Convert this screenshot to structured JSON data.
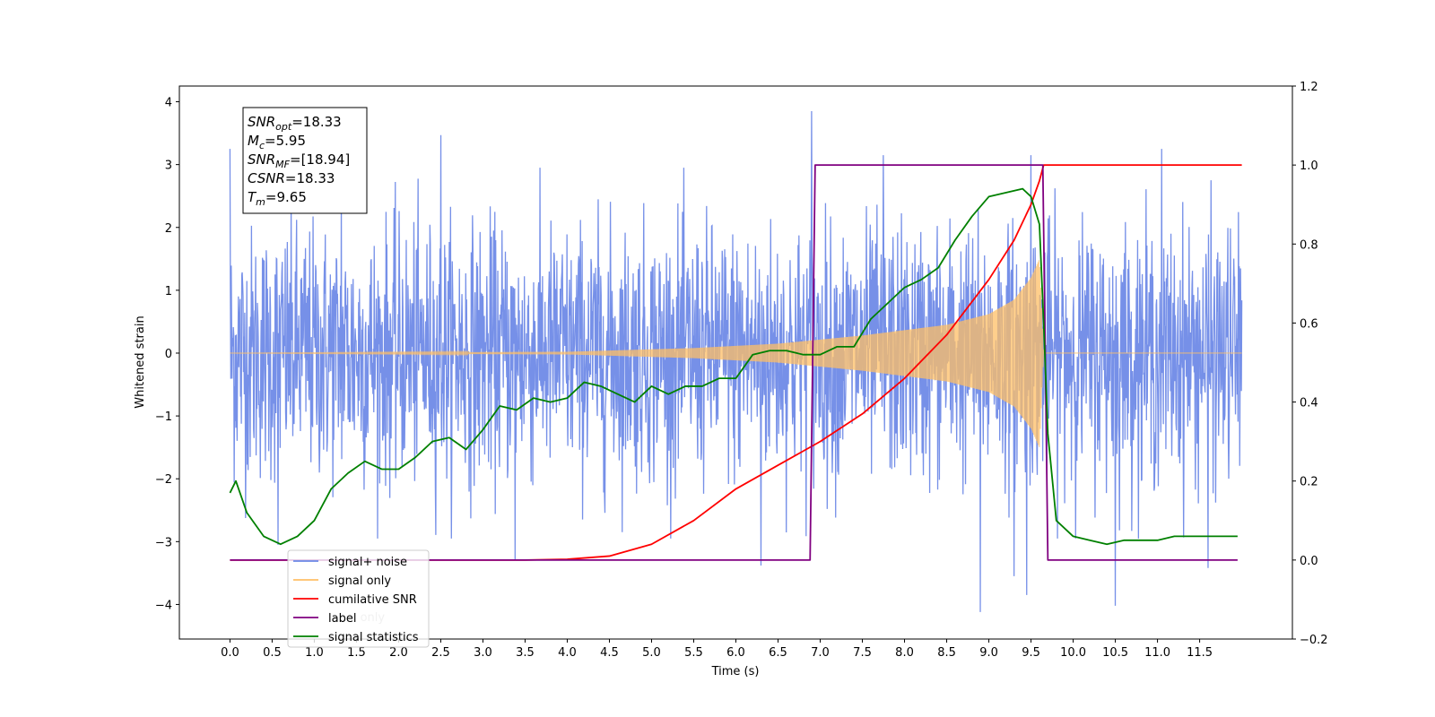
{
  "chart_data": {
    "type": "line",
    "xlabel": "Time (s)",
    "ylabel_left": "Whitened strain",
    "xlim": [
      -0.6,
      12.6
    ],
    "ylim_left": [
      -4.55,
      4.25
    ],
    "ylim_right": [
      -0.2,
      1.2
    ],
    "x_ticks": [
      0.0,
      0.5,
      1.0,
      1.5,
      2.0,
      2.5,
      3.0,
      3.5,
      4.0,
      4.5,
      5.0,
      5.5,
      6.0,
      6.5,
      7.0,
      7.5,
      8.0,
      8.5,
      9.0,
      9.5,
      10.0,
      10.5,
      11.0,
      11.5
    ],
    "x_tick_labels": [
      "0.0",
      "0.5",
      "1.0",
      "1.5",
      "2.0",
      "2.5",
      "3.0",
      "3.5",
      "4.0",
      "4.5",
      "5.0",
      "5.5",
      "6.0",
      "6.5",
      "7.0",
      "7.5",
      "8.0",
      "8.5",
      "9.0",
      "9.5",
      "10.0",
      "10.5",
      "11.0",
      "11.5"
    ],
    "y_ticks_left": [
      4,
      3,
      2,
      1,
      0,
      -1,
      -2,
      -3,
      -4
    ],
    "y_tick_labels_left": [
      "4",
      "3",
      "2",
      "1",
      "0",
      "−1",
      "−2",
      "−3",
      "−4"
    ],
    "y_ticks_right": [
      1.2,
      1.0,
      0.8,
      0.6,
      0.4,
      0.2,
      0.0,
      -0.2
    ],
    "y_tick_labels_right": [
      "1.2",
      "1.0",
      "0.8",
      "0.6",
      "0.4",
      "0.2",
      "0.0",
      "−0.2"
    ],
    "annotation": [
      {
        "sym": "SNR",
        "sub": "opt",
        "rest": "=18.33"
      },
      {
        "sym": "M",
        "sub": "c",
        "rest": "=5.95"
      },
      {
        "sym": "SNR",
        "sub": "MF",
        "rest": "=[18.94]"
      },
      {
        "sym": "CSNR",
        "sub": "",
        "rest": "=18.33"
      },
      {
        "sym": "T",
        "sub": "m",
        "rest": "=9.65"
      }
    ],
    "legend": [
      {
        "label": "signal+ noise",
        "color": "#6a87e6"
      },
      {
        "label": "signal only",
        "color": "#ffbf66"
      },
      {
        "label": "cumilative SNR",
        "color": "#ff0000"
      },
      {
        "label": "label",
        "color": "#800080"
      },
      {
        "label": "signal statistics",
        "color": "#008000"
      }
    ],
    "hidden_legend_label": "label only",
    "series": [
      {
        "name": "signal+ noise",
        "axis": "left",
        "color": "#6a87e6",
        "x_range": [
          0.0,
          12.0
        ],
        "noise_sigma": 1.0,
        "peaks": [
          [
            0.0,
            3.25
          ],
          [
            1.32,
            2.55
          ],
          [
            2.5,
            3.47
          ],
          [
            6.9,
            3.85
          ],
          [
            7.75,
            3.15
          ],
          [
            9.5,
            3.15
          ],
          [
            11.05,
            3.25
          ],
          [
            0.57,
            -3.05
          ],
          [
            3.38,
            -3.28
          ],
          [
            6.3,
            -3.38
          ],
          [
            8.9,
            -4.12
          ],
          [
            9.3,
            -3.55
          ],
          [
            9.45,
            -3.85
          ],
          [
            10.5,
            -4.02
          ],
          [
            11.6,
            -3.42
          ]
        ]
      },
      {
        "name": "signal only",
        "axis": "left",
        "color": "#ffbf66",
        "envelope": [
          [
            0.0,
            0.0
          ],
          [
            4.0,
            0.02
          ],
          [
            5.5,
            0.08
          ],
          [
            6.5,
            0.15
          ],
          [
            7.5,
            0.28
          ],
          [
            8.5,
            0.45
          ],
          [
            9.0,
            0.62
          ],
          [
            9.3,
            0.85
          ],
          [
            9.5,
            1.2
          ],
          [
            9.6,
            1.5
          ],
          [
            9.65,
            0.0
          ],
          [
            12.0,
            0.0
          ]
        ]
      },
      {
        "name": "cumilative SNR",
        "axis": "right",
        "color": "#ff0000",
        "x": [
          0.0,
          3.5,
          4.0,
          4.5,
          5.0,
          5.5,
          6.0,
          6.5,
          7.0,
          7.5,
          8.0,
          8.5,
          9.0,
          9.3,
          9.5,
          9.6,
          9.65,
          12.0
        ],
        "y": [
          0.0,
          0.0,
          0.002,
          0.01,
          0.04,
          0.1,
          0.18,
          0.24,
          0.3,
          0.37,
          0.46,
          0.57,
          0.71,
          0.81,
          0.9,
          0.96,
          1.0,
          1.0
        ]
      },
      {
        "name": "label",
        "axis": "right",
        "color": "#800080",
        "x": [
          0.0,
          6.88,
          6.94,
          9.64,
          9.7,
          11.95
        ],
        "y": [
          0.0,
          0.0,
          1.0,
          1.0,
          0.0,
          0.0
        ]
      },
      {
        "name": "signal statistics",
        "axis": "right",
        "color": "#008000",
        "x": [
          0.0,
          0.07,
          0.2,
          0.4,
          0.6,
          0.8,
          1.0,
          1.2,
          1.4,
          1.6,
          1.8,
          2.0,
          2.2,
          2.4,
          2.6,
          2.8,
          3.0,
          3.2,
          3.4,
          3.6,
          3.8,
          4.0,
          4.2,
          4.4,
          4.6,
          4.8,
          5.0,
          5.2,
          5.4,
          5.6,
          5.8,
          6.0,
          6.2,
          6.4,
          6.6,
          6.8,
          7.0,
          7.2,
          7.4,
          7.6,
          7.8,
          8.0,
          8.2,
          8.4,
          8.6,
          8.8,
          9.0,
          9.2,
          9.4,
          9.5,
          9.6,
          9.65,
          9.7,
          9.8,
          10.0,
          10.2,
          10.4,
          10.6,
          10.8,
          11.0,
          11.2,
          11.4,
          11.6,
          11.8,
          11.95
        ],
        "y": [
          0.17,
          0.2,
          0.12,
          0.06,
          0.04,
          0.06,
          0.1,
          0.18,
          0.22,
          0.25,
          0.23,
          0.23,
          0.26,
          0.3,
          0.31,
          0.28,
          0.33,
          0.39,
          0.38,
          0.41,
          0.4,
          0.41,
          0.45,
          0.44,
          0.42,
          0.4,
          0.44,
          0.42,
          0.44,
          0.44,
          0.46,
          0.46,
          0.52,
          0.53,
          0.53,
          0.52,
          0.52,
          0.54,
          0.54,
          0.61,
          0.65,
          0.69,
          0.71,
          0.74,
          0.81,
          0.87,
          0.92,
          0.93,
          0.94,
          0.92,
          0.85,
          0.6,
          0.32,
          0.1,
          0.06,
          0.05,
          0.04,
          0.05,
          0.05,
          0.05,
          0.06,
          0.06,
          0.06,
          0.06,
          0.06
        ]
      }
    ]
  }
}
